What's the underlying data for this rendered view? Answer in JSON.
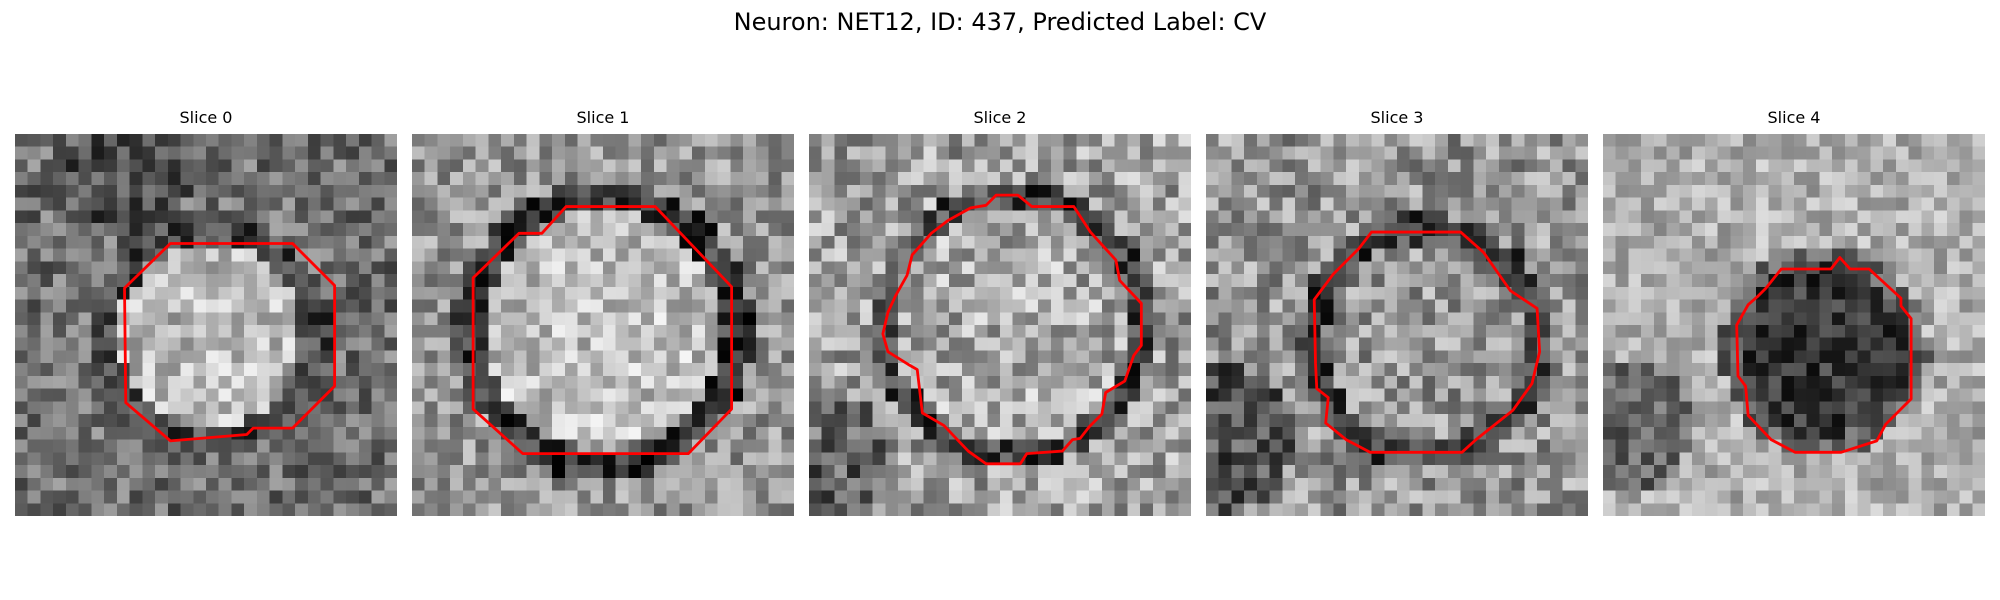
{
  "figure": {
    "title": "Neuron: NET12, ID: 437, Predicted Label: CV"
  },
  "panels": [
    {
      "title": "Slice 0",
      "content": "grayscale EM patch with bright round nucleus near center",
      "contour_color": "#ff0000"
    },
    {
      "title": "Slice 1",
      "content": "grayscale EM patch with bright round nucleus surrounded by dark ring",
      "contour_color": "#ff0000"
    },
    {
      "title": "Slice 2",
      "content": "grayscale EM patch with textured round nucleus",
      "contour_color": "#ff0000"
    },
    {
      "title": "Slice 3",
      "content": "grayscale EM patch with mottled round nucleus",
      "contour_color": "#ff0000"
    },
    {
      "title": "Slice 4",
      "content": "grayscale EM patch with dark round nucleus",
      "contour_color": "#ff0000"
    }
  ],
  "colors": {
    "contour": "#ff0000",
    "background": "#ffffff"
  }
}
